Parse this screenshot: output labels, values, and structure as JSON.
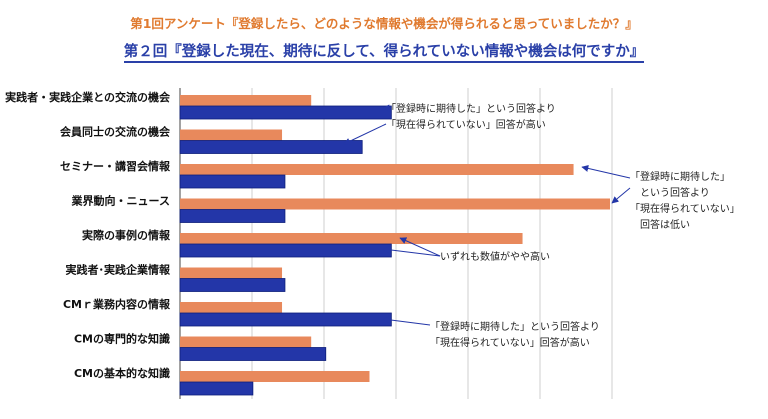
{
  "title1": "第1回アンケート『登録したら、どのような情報や機会が得られると思っていましたか？』",
  "title2": "第２回『登録した現在、期待に反して、得られていない情報や機会は何ですか』",
  "colors": {
    "first": "#e8895c",
    "second": "#2336a8",
    "arrow": "#2336a8"
  },
  "chart_data": {
    "type": "bar",
    "orientation": "horizontal",
    "categories": [
      "実践者・実践企業との交流の機会",
      "会員同士の交流の機会",
      "セミナー・講習会情報",
      "業界動向・ニュース",
      "実際の事例の情報",
      "実践者･実践企業情報",
      "CMｒ業務内容の情報",
      "CMの専門的な知識",
      "CMの基本的な知識"
    ],
    "series": [
      {
        "values": [
          4.5,
          2.5,
          22.5,
          25,
          19,
          2.5,
          2.5,
          4.5,
          8.5
        ],
        "color": "#e8895c"
      },
      {
        "values": [
          10,
          8,
          2.7,
          2.7,
          10,
          2.7,
          10,
          5.5,
          0.5
        ],
        "color": "#2336a8"
      }
    ],
    "xlim": [
      -4.5,
      25
    ],
    "grid": true,
    "annotations": [
      {
        "lines": [
          "「登録時に期待した」という回答より",
          "「現在得られていない」回答が高い"
        ]
      },
      {
        "lines": [
          "「登録時に期待した」",
          "　という回答より",
          "「現在得られていない」",
          "　回答は低い"
        ]
      },
      {
        "lines": [
          "いずれも数値がやや高い"
        ]
      },
      {
        "lines": [
          "「登録時に期待した」という回答より",
          "「現在得られていない」回答が高い"
        ]
      }
    ]
  }
}
